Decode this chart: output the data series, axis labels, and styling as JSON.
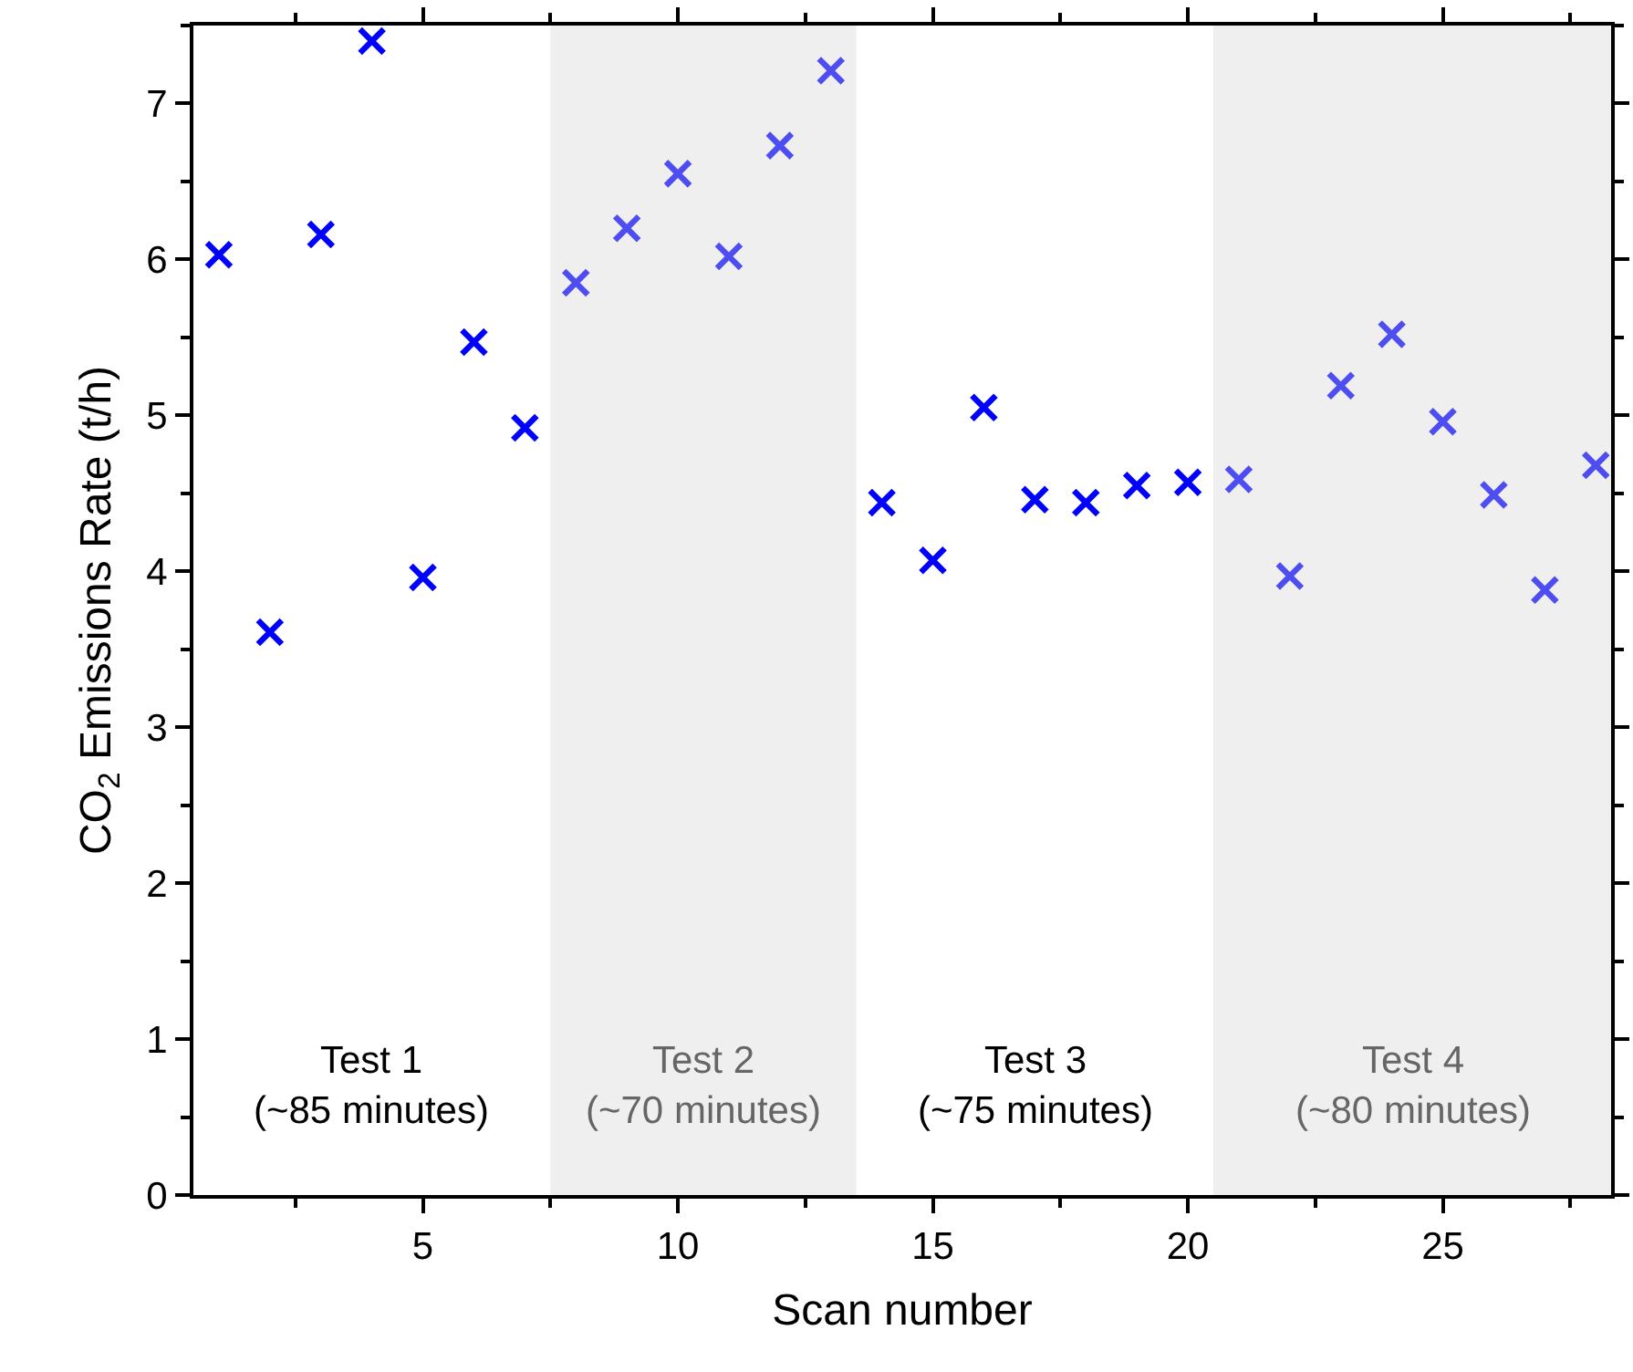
{
  "chart_data": {
    "type": "scatter",
    "xlabel": "Scan number",
    "ylabel": "CO$_{2}$ Emissions Rate (t/h)",
    "x": [
      1,
      2,
      3,
      4,
      5,
      6,
      7,
      8,
      9,
      10,
      11,
      12,
      13,
      14,
      15,
      16,
      17,
      18,
      19,
      20,
      21,
      22,
      23,
      24,
      25,
      26,
      27,
      28
    ],
    "values": [
      6.03,
      3.61,
      6.16,
      7.4,
      3.96,
      5.47,
      4.92,
      5.85,
      6.2,
      6.55,
      6.02,
      6.73,
      7.21,
      4.44,
      4.07,
      5.05,
      4.46,
      4.44,
      4.55,
      4.57,
      4.59,
      3.97,
      5.19,
      5.52,
      4.96,
      4.49,
      3.88,
      4.68
    ],
    "colors": [
      "#0000ff",
      "#0000ff",
      "#0000ff",
      "#0000ff",
      "#0000ff",
      "#0000ff",
      "#0000ff",
      "#4d4df2",
      "#4d4df2",
      "#4d4df2",
      "#4d4df2",
      "#4d4df2",
      "#4d4df2",
      "#0000ff",
      "#0000ff",
      "#0000ff",
      "#0000ff",
      "#0000ff",
      "#0000ff",
      "#0000ff",
      "#4d4df2",
      "#4d4df2",
      "#4d4df2",
      "#4d4df2",
      "#4d4df2",
      "#4d4df2",
      "#4d4df2",
      "#4d4df2"
    ],
    "marker": "cross",
    "xlim": [
      0.5,
      28.3
    ],
    "xticks": [
      5,
      10,
      15,
      20,
      25
    ],
    "ylim": [
      0,
      7.5
    ],
    "yticks": [
      0,
      1,
      2,
      3,
      4,
      5,
      6,
      7
    ],
    "bands": [
      {
        "axis": "x",
        "from": 7.5,
        "to": 13.5,
        "label": "Test 2\n(~70 minutes)",
        "color": "#efefef"
      },
      {
        "axis": "x",
        "from": 20.5,
        "to": 28.3,
        "label": "Test 4\n(~80 minutes)",
        "color": "#efefef"
      }
    ],
    "annotations": [
      "Test 1\n(~85 minutes)",
      "Test 3\n(~75 minutes)"
    ],
    "grid": false,
    "legend": false
  }
}
